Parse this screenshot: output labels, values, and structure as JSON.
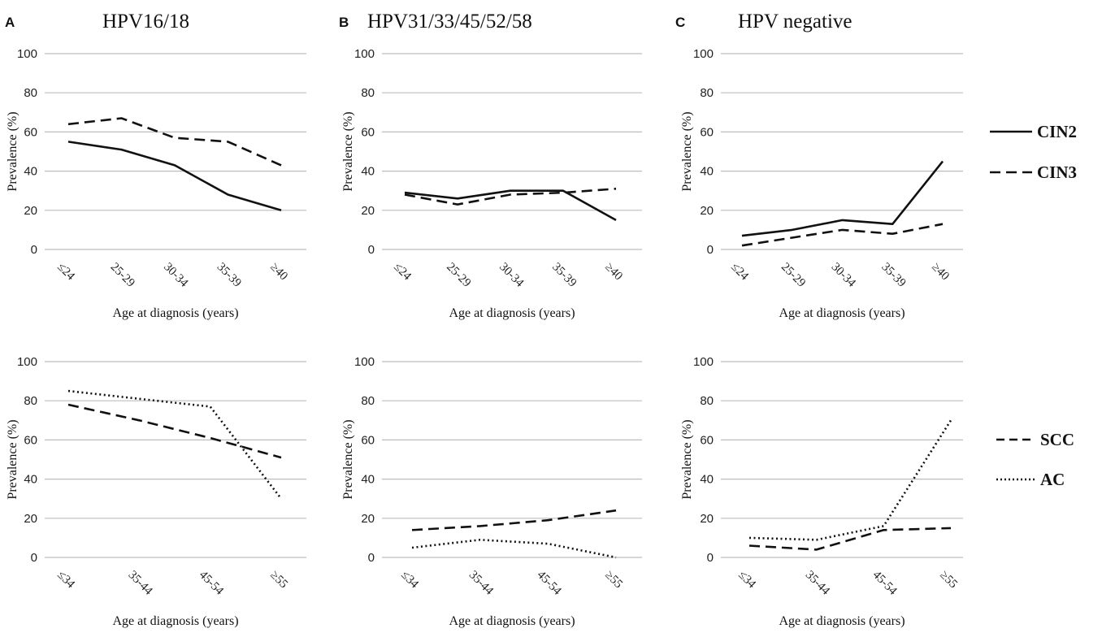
{
  "figure": {
    "panel_letters": [
      "A",
      "B",
      "C"
    ],
    "legends": [
      {
        "entries": [
          {
            "label": "CIN2",
            "style": "solid"
          },
          {
            "label": "CIN3",
            "style": "dashed"
          }
        ]
      },
      {
        "entries": [
          {
            "label": "SCC",
            "style": "dashed"
          },
          {
            "label": "AC",
            "style": "dotted"
          }
        ]
      }
    ]
  },
  "chart_data": [
    {
      "type": "line",
      "title": "HPV16/18",
      "xlabel": "Age at diagnosis (years)",
      "ylabel": "Prevalence (%)",
      "categories": [
        "≤24",
        "25-29",
        "30-34",
        "35-39",
        "≥40"
      ],
      "yticks": [
        "0",
        "20",
        "40",
        "60",
        "80",
        "100"
      ],
      "ylim": [
        0,
        100
      ],
      "series": [
        {
          "name": "CIN2",
          "style": "solid",
          "values": [
            55,
            51,
            43,
            28,
            20
          ]
        },
        {
          "name": "CIN3",
          "style": "dashed",
          "values": [
            64,
            67,
            57,
            55,
            43
          ]
        }
      ]
    },
    {
      "type": "line",
      "title": "HPV31/33/45/52/58",
      "xlabel": "Age at diagnosis (years)",
      "ylabel": "Prevalence (%)",
      "categories": [
        "≤24",
        "25-29",
        "30-34",
        "35-39",
        "≥40"
      ],
      "yticks": [
        "0",
        "20",
        "40",
        "60",
        "80",
        "100"
      ],
      "ylim": [
        0,
        100
      ],
      "series": [
        {
          "name": "CIN2",
          "style": "solid",
          "values": [
            29,
            26,
            30,
            30,
            15
          ]
        },
        {
          "name": "CIN3",
          "style": "dashed",
          "values": [
            28,
            23,
            28,
            29,
            31
          ]
        }
      ]
    },
    {
      "type": "line",
      "title": "HPV negative",
      "xlabel": "Age at diagnosis (years)",
      "ylabel": "Prevalence (%)",
      "categories": [
        "≤24",
        "25-29",
        "30-34",
        "35-39",
        "≥40"
      ],
      "yticks": [
        "0",
        "20",
        "40",
        "60",
        "80",
        "100"
      ],
      "ylim": [
        0,
        100
      ],
      "series": [
        {
          "name": "CIN2",
          "style": "solid",
          "values": [
            7,
            10,
            15,
            13,
            45
          ]
        },
        {
          "name": "CIN3",
          "style": "dashed",
          "values": [
            2,
            6,
            10,
            8,
            13
          ]
        }
      ]
    },
    {
      "type": "line",
      "title": "",
      "xlabel": "Age at diagnosis (years)",
      "ylabel": "Prevalence (%)",
      "categories": [
        "≤34",
        "35-44",
        "45-54",
        "≥55"
      ],
      "yticks": [
        "0",
        "20",
        "40",
        "60",
        "80",
        "100"
      ],
      "ylim": [
        0,
        100
      ],
      "series": [
        {
          "name": "SCC",
          "style": "dashed",
          "values": [
            78,
            70,
            61,
            51
          ]
        },
        {
          "name": "AC",
          "style": "dotted",
          "values": [
            85,
            81,
            77,
            30
          ]
        }
      ]
    },
    {
      "type": "line",
      "title": "",
      "xlabel": "Age at diagnosis (years)",
      "ylabel": "Prevalence (%)",
      "categories": [
        "≤34",
        "35-44",
        "45-54",
        "≥55"
      ],
      "yticks": [
        "0",
        "20",
        "40",
        "60",
        "80",
        "100"
      ],
      "ylim": [
        0,
        100
      ],
      "series": [
        {
          "name": "SCC",
          "style": "dashed",
          "values": [
            14,
            16,
            19,
            24
          ]
        },
        {
          "name": "AC",
          "style": "dotted",
          "values": [
            5,
            9,
            7,
            0
          ]
        }
      ]
    },
    {
      "type": "line",
      "title": "",
      "xlabel": "Age at diagnosis (years)",
      "ylabel": "Prevalence (%)",
      "categories": [
        "≤34",
        "35-44",
        "45-54",
        "≥55"
      ],
      "yticks": [
        "0",
        "20",
        "40",
        "60",
        "80",
        "100"
      ],
      "ylim": [
        0,
        100
      ],
      "series": [
        {
          "name": "SCC",
          "style": "dashed",
          "values": [
            6,
            4,
            14,
            15
          ]
        },
        {
          "name": "AC",
          "style": "dotted",
          "values": [
            10,
            9,
            16,
            70
          ]
        }
      ]
    }
  ]
}
